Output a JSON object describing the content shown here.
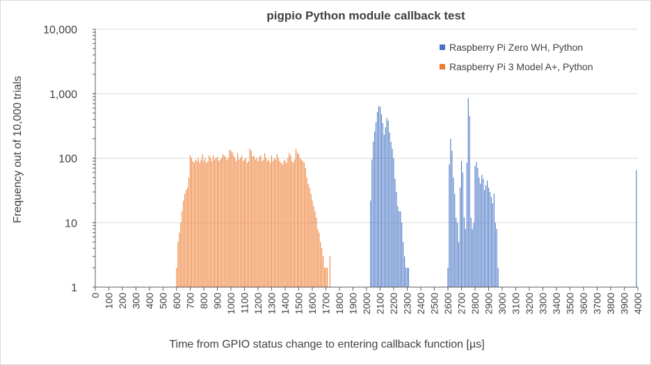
{
  "chart_data": {
    "type": "bar",
    "title": "pigpio Python module callback test",
    "xlabel": "Time from GPIO status change to entering callback function [µs]",
    "ylabel": "Frequency out of  10,000 trials",
    "yscale": "log",
    "ylim": [
      1,
      10000
    ],
    "yticks": [
      1,
      10,
      100,
      1000,
      10000
    ],
    "ytick_labels": [
      "1",
      "10",
      "100",
      "1,000",
      "10,000"
    ],
    "xlim": [
      0,
      4000
    ],
    "xtick_step": 100,
    "bin_width_us": 10,
    "grid": "horizontal",
    "legend_position": "top-right",
    "series": [
      {
        "name": "Raspberry Pi Zero WH, Python",
        "color": "#4472C4",
        "points": [
          [
            2030,
            22
          ],
          [
            2040,
            95
          ],
          [
            2050,
            180
          ],
          [
            2060,
            260
          ],
          [
            2070,
            360
          ],
          [
            2080,
            520
          ],
          [
            2090,
            640
          ],
          [
            2100,
            630
          ],
          [
            2110,
            480
          ],
          [
            2120,
            350
          ],
          [
            2130,
            230
          ],
          [
            2140,
            300
          ],
          [
            2150,
            420
          ],
          [
            2160,
            380
          ],
          [
            2170,
            250
          ],
          [
            2180,
            180
          ],
          [
            2190,
            140
          ],
          [
            2200,
            100
          ],
          [
            2210,
            48
          ],
          [
            2220,
            30
          ],
          [
            2230,
            18
          ],
          [
            2240,
            15
          ],
          [
            2250,
            15
          ],
          [
            2260,
            10
          ],
          [
            2270,
            5
          ],
          [
            2280,
            3
          ],
          [
            2290,
            2
          ],
          [
            2300,
            2
          ],
          [
            2310,
            2
          ],
          [
            2600,
            2
          ],
          [
            2610,
            80
          ],
          [
            2620,
            200
          ],
          [
            2630,
            130
          ],
          [
            2640,
            50
          ],
          [
            2650,
            28
          ],
          [
            2660,
            12
          ],
          [
            2670,
            10
          ],
          [
            2680,
            5
          ],
          [
            2690,
            35
          ],
          [
            2700,
            90
          ],
          [
            2710,
            60
          ],
          [
            2720,
            12
          ],
          [
            2730,
            8
          ],
          [
            2740,
            85
          ],
          [
            2750,
            850
          ],
          [
            2760,
            450
          ],
          [
            2770,
            12
          ],
          [
            2780,
            8
          ],
          [
            2790,
            10
          ],
          [
            2800,
            75
          ],
          [
            2810,
            88
          ],
          [
            2820,
            70
          ],
          [
            2830,
            50
          ],
          [
            2840,
            40
          ],
          [
            2850,
            55
          ],
          [
            2860,
            48
          ],
          [
            2870,
            32
          ],
          [
            2880,
            38
          ],
          [
            2890,
            45
          ],
          [
            2900,
            35
          ],
          [
            2910,
            30
          ],
          [
            2920,
            25
          ],
          [
            2930,
            20
          ],
          [
            2940,
            28
          ],
          [
            2950,
            10
          ],
          [
            2960,
            8
          ],
          [
            2970,
            2
          ],
          [
            3990,
            65
          ]
        ]
      },
      {
        "name": "Raspberry Pi 3 Model A+, Python",
        "color": "#ED7D31",
        "points": [
          [
            600,
            2
          ],
          [
            610,
            5
          ],
          [
            620,
            7
          ],
          [
            630,
            10
          ],
          [
            640,
            15
          ],
          [
            650,
            22
          ],
          [
            660,
            28
          ],
          [
            670,
            32
          ],
          [
            680,
            35
          ],
          [
            690,
            50
          ],
          [
            700,
            110
          ],
          [
            710,
            100
          ],
          [
            720,
            90
          ],
          [
            730,
            85
          ],
          [
            740,
            95
          ],
          [
            750,
            90
          ],
          [
            760,
            100
          ],
          [
            770,
            85
          ],
          [
            780,
            95
          ],
          [
            790,
            115
          ],
          [
            800,
            90
          ],
          [
            810,
            100
          ],
          [
            820,
            85
          ],
          [
            830,
            90
          ],
          [
            840,
            110
          ],
          [
            850,
            100
          ],
          [
            860,
            90
          ],
          [
            870,
            110
          ],
          [
            880,
            95
          ],
          [
            890,
            100
          ],
          [
            900,
            105
          ],
          [
            910,
            90
          ],
          [
            920,
            95
          ],
          [
            930,
            100
          ],
          [
            940,
            115
          ],
          [
            950,
            110
          ],
          [
            960,
            105
          ],
          [
            970,
            95
          ],
          [
            980,
            100
          ],
          [
            990,
            135
          ],
          [
            1000,
            130
          ],
          [
            1010,
            125
          ],
          [
            1020,
            110
          ],
          [
            1030,
            100
          ],
          [
            1040,
            90
          ],
          [
            1050,
            120
          ],
          [
            1060,
            95
          ],
          [
            1070,
            100
          ],
          [
            1080,
            110
          ],
          [
            1090,
            90
          ],
          [
            1100,
            95
          ],
          [
            1110,
            100
          ],
          [
            1120,
            85
          ],
          [
            1130,
            90
          ],
          [
            1140,
            140
          ],
          [
            1150,
            130
          ],
          [
            1160,
            105
          ],
          [
            1170,
            110
          ],
          [
            1180,
            95
          ],
          [
            1190,
            100
          ],
          [
            1200,
            90
          ],
          [
            1210,
            105
          ],
          [
            1220,
            110
          ],
          [
            1230,
            90
          ],
          [
            1240,
            95
          ],
          [
            1250,
            120
          ],
          [
            1260,
            100
          ],
          [
            1270,
            90
          ],
          [
            1280,
            95
          ],
          [
            1290,
            85
          ],
          [
            1300,
            110
          ],
          [
            1310,
            90
          ],
          [
            1320,
            100
          ],
          [
            1330,
            95
          ],
          [
            1340,
            115
          ],
          [
            1350,
            100
          ],
          [
            1360,
            90
          ],
          [
            1370,
            85
          ],
          [
            1380,
            80
          ],
          [
            1390,
            90
          ],
          [
            1400,
            95
          ],
          [
            1410,
            85
          ],
          [
            1420,
            100
          ],
          [
            1430,
            120
          ],
          [
            1440,
            110
          ],
          [
            1450,
            90
          ],
          [
            1460,
            85
          ],
          [
            1470,
            95
          ],
          [
            1480,
            140
          ],
          [
            1490,
            120
          ],
          [
            1500,
            115
          ],
          [
            1510,
            100
          ],
          [
            1520,
            95
          ],
          [
            1530,
            90
          ],
          [
            1540,
            85
          ],
          [
            1550,
            70
          ],
          [
            1560,
            50
          ],
          [
            1570,
            40
          ],
          [
            1580,
            35
          ],
          [
            1590,
            28
          ],
          [
            1600,
            22
          ],
          [
            1610,
            18
          ],
          [
            1620,
            15
          ],
          [
            1630,
            12
          ],
          [
            1640,
            8
          ],
          [
            1650,
            7
          ],
          [
            1660,
            5
          ],
          [
            1670,
            4
          ],
          [
            1680,
            3
          ],
          [
            1690,
            2
          ],
          [
            1700,
            2
          ],
          [
            1710,
            2
          ],
          [
            1730,
            3
          ]
        ]
      }
    ]
  }
}
